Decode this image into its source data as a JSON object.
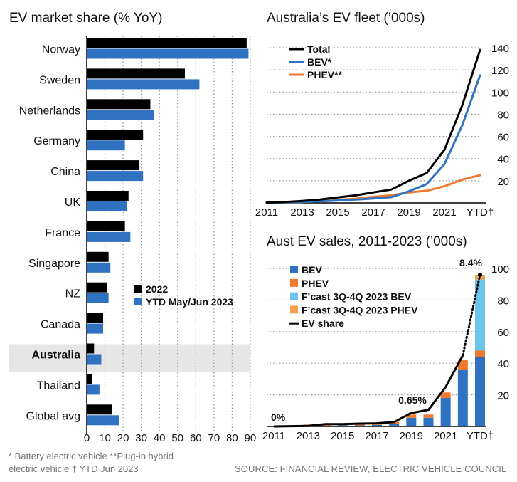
{
  "colors": {
    "black": "#000000",
    "blue": "#2f72c2",
    "orange": "#ef7a2f",
    "light_blue": "#6cc3eb",
    "light_orange": "#f4a14e",
    "highlight": "#e6e6e6",
    "grid": "#9a9a9a"
  },
  "footnotes": {
    "line1": "* Battery electric vehicle  **Plug-in hybrid",
    "line2": "electric vehicle   † YTD Jun 2023",
    "source": "SOURCE: FINANCIAL REVIEW, ELECTRIC VEHICLE COUNCIL"
  },
  "chart_data": [
    {
      "id": "market_share",
      "type": "bar",
      "orientation": "horizontal",
      "title": "EV market share (% YoY)",
      "categories": [
        "Norway",
        "Sweden",
        "Netherlands",
        "Germany",
        "China",
        "UK",
        "France",
        "Singapore",
        "NZ",
        "Canada",
        "Australia",
        "Thailand",
        "Global avg"
      ],
      "highlight": "Australia",
      "series": [
        {
          "name": "2022",
          "color": "#000000",
          "values": [
            88,
            54,
            35,
            31,
            29,
            23,
            21,
            12,
            11,
            9,
            4,
            3,
            14
          ]
        },
        {
          "name": "YTD May/Jun 2023",
          "color": "#2f72c2",
          "values": [
            89,
            62,
            37,
            21,
            31,
            22,
            24,
            13,
            12,
            9,
            8,
            7,
            18
          ]
        }
      ],
      "xlim": [
        0,
        90
      ],
      "xticks": [
        "0",
        "10",
        "20",
        "30",
        "40",
        "50",
        "60",
        "70",
        "80",
        "90"
      ],
      "grid": true,
      "legend": "bottom-right"
    },
    {
      "id": "fleet",
      "type": "line",
      "title": "Australia’s EV fleet (’000s)",
      "x": [
        2011,
        2012,
        2013,
        2014,
        2015,
        2016,
        2017,
        2018,
        2019,
        2020,
        2021,
        2022,
        2023
      ],
      "xticks": [
        "2011",
        "2013",
        "2015",
        "2017",
        "2019",
        "2021",
        "YTD†"
      ],
      "series": [
        {
          "name": "Total",
          "color": "#000000",
          "values": [
            0.3,
            0.8,
            1.8,
            3.0,
            5.0,
            6.8,
            9.5,
            12,
            20,
            27,
            48,
            88,
            138
          ]
        },
        {
          "name": "BEV*",
          "color": "#2f72c2",
          "values": [
            0.2,
            0.5,
            0.9,
            1.5,
            2.2,
            3,
            4,
            5.2,
            10.5,
            17,
            35,
            70,
            115
          ]
        },
        {
          "name": "PHEV**",
          "color": "#ef7a2f",
          "values": [
            0.1,
            0.3,
            0.9,
            1.5,
            2.8,
            3.8,
            5.5,
            6.8,
            9.5,
            11,
            15,
            21,
            25
          ]
        }
      ],
      "ylim": [
        0,
        140
      ],
      "yticks": [
        "20",
        "40",
        "60",
        "80",
        "100",
        "120",
        "140"
      ],
      "grid": true,
      "legend": "top-left"
    },
    {
      "id": "sales",
      "type": "bar",
      "stacked": true,
      "title": "Aust EV sales, 2011-2023 (’000s)",
      "x": [
        2011,
        2012,
        2013,
        2014,
        2015,
        2016,
        2017,
        2018,
        2019,
        2020,
        2021,
        2022,
        2023
      ],
      "xticks": [
        "2011",
        "2013",
        "2015",
        "2017",
        "2019",
        "2021",
        "YTD†"
      ],
      "series": [
        {
          "name": "BEV",
          "color": "#2f72c2",
          "values": [
            0.05,
            0.1,
            0.2,
            0.4,
            0.8,
            0.7,
            1.0,
            1.4,
            5.5,
            5.5,
            18,
            36,
            44
          ]
        },
        {
          "name": "PHEV",
          "color": "#ef7a2f",
          "values": [
            0.05,
            0.2,
            1.0,
            1.0,
            1.0,
            1.0,
            1.2,
            1.5,
            2.0,
            2.0,
            3.5,
            6,
            4
          ]
        },
        {
          "name": "F’cast 3Q-4Q 2023 BEV",
          "color": "#6cc3eb",
          "values": [
            0,
            0,
            0,
            0,
            0,
            0,
            0,
            0,
            0,
            0,
            0,
            0,
            45
          ]
        },
        {
          "name": "F’cast 3Q-4Q 2023 PHEV",
          "color": "#f4a14e",
          "values": [
            0,
            0,
            0,
            0,
            0,
            0,
            0,
            0,
            0,
            0,
            0,
            0,
            3
          ]
        }
      ],
      "line": {
        "name": "EV share",
        "color": "#000000",
        "values": [
          0,
          0.2,
          0.3,
          1.5,
          1.5,
          1.8,
          2.0,
          2.8,
          8.5,
          10.5,
          25,
          45,
          96
        ]
      },
      "annotations": [
        "0%",
        "0.65%",
        "8.4%"
      ],
      "ylim": [
        0,
        100
      ],
      "yticks": [
        "20",
        "40",
        "60",
        "80",
        "100"
      ],
      "grid": true,
      "legend": "top-left"
    }
  ]
}
